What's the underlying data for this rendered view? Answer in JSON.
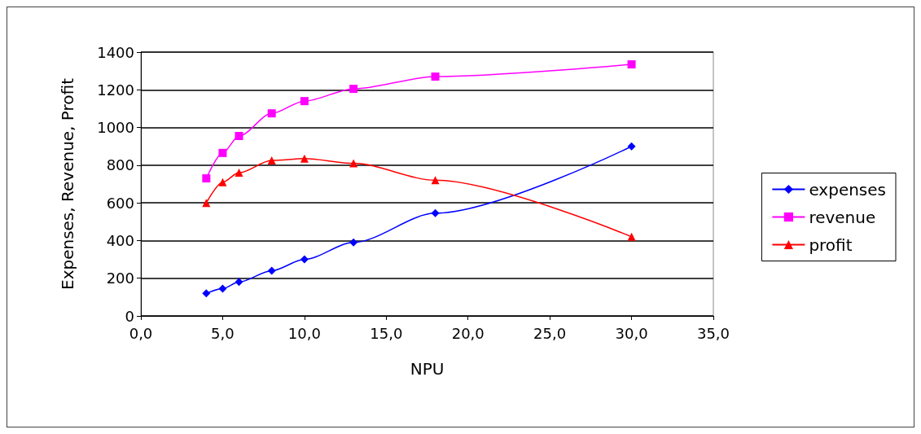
{
  "chart_data": {
    "type": "line",
    "xlabel": "NPU",
    "ylabel": "Expenses, Revenue, Profit",
    "x": [
      4,
      5,
      6,
      8,
      10,
      13,
      18,
      30
    ],
    "series": [
      {
        "name": "expenses",
        "color": "#0000ff",
        "marker": "diamond",
        "values": [
          120,
          145,
          180,
          240,
          300,
          390,
          545,
          900
        ]
      },
      {
        "name": "revenue",
        "color": "#ff00ff",
        "marker": "square",
        "values": [
          730,
          865,
          955,
          1075,
          1140,
          1205,
          1270,
          1335
        ]
      },
      {
        "name": "profit",
        "color": "#ff0000",
        "marker": "triangle",
        "values": [
          600,
          710,
          760,
          825,
          835,
          810,
          720,
          420
        ]
      }
    ],
    "xlim": [
      0,
      35
    ],
    "xticks": [
      {
        "value": 0,
        "label": "0,0"
      },
      {
        "value": 5,
        "label": "5,0"
      },
      {
        "value": 10,
        "label": "10,0"
      },
      {
        "value": 15,
        "label": "15,0"
      },
      {
        "value": 20,
        "label": "20,0"
      },
      {
        "value": 25,
        "label": "25,0"
      },
      {
        "value": 30,
        "label": "30,0"
      },
      {
        "value": 35,
        "label": "35,0"
      }
    ],
    "ylim": [
      0,
      1400
    ],
    "yticks": [
      0,
      200,
      400,
      600,
      800,
      1000,
      1200,
      1400
    ],
    "grid": "y",
    "legend": "right"
  }
}
